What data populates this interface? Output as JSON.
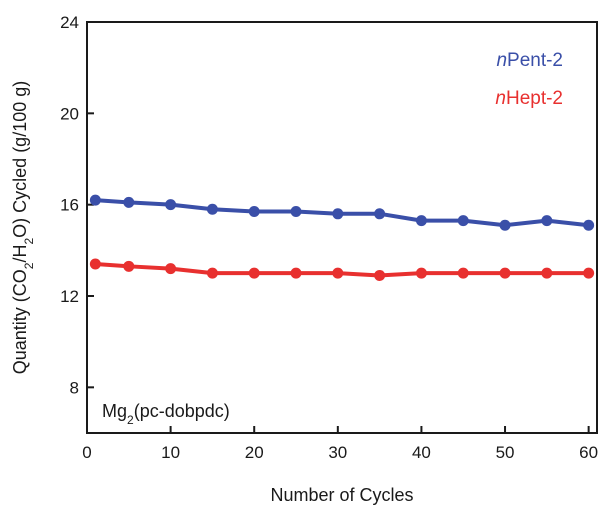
{
  "chart_data": {
    "type": "line",
    "title": "",
    "xlabel": "Number of Cycles",
    "ylabel": {
      "parts": [
        "Quantity (CO",
        "2",
        "/H",
        "2",
        "O) Cycled (g/100 g)"
      ]
    },
    "xlim": [
      0,
      61
    ],
    "ylim": [
      6,
      24
    ],
    "xticks": [
      0,
      10,
      20,
      30,
      40,
      50,
      60
    ],
    "yticks": [
      8,
      12,
      16,
      20,
      24
    ],
    "grid": false,
    "legend_position": "top-right",
    "annotation": {
      "parts": [
        "Mg",
        "2",
        "(pc-dobpdc)"
      ]
    },
    "series": [
      {
        "name": "nPent-2",
        "name_parts": [
          "n",
          "Pent-2"
        ],
        "color": "#3a4fa8",
        "x": [
          1,
          5,
          10,
          15,
          20,
          25,
          30,
          35,
          40,
          45,
          50,
          55,
          60
        ],
        "y": [
          16.2,
          16.1,
          16.0,
          15.8,
          15.7,
          15.7,
          15.6,
          15.6,
          15.3,
          15.3,
          15.1,
          15.3,
          15.1
        ]
      },
      {
        "name": "nHept-2",
        "name_parts": [
          "n",
          "Hept-2"
        ],
        "color": "#e8302f",
        "x": [
          1,
          5,
          10,
          15,
          20,
          25,
          30,
          35,
          40,
          45,
          50,
          55,
          60
        ],
        "y": [
          13.4,
          13.3,
          13.2,
          13.0,
          13.0,
          13.0,
          13.0,
          12.9,
          13.0,
          13.0,
          13.0,
          13.0,
          13.0
        ]
      }
    ]
  }
}
